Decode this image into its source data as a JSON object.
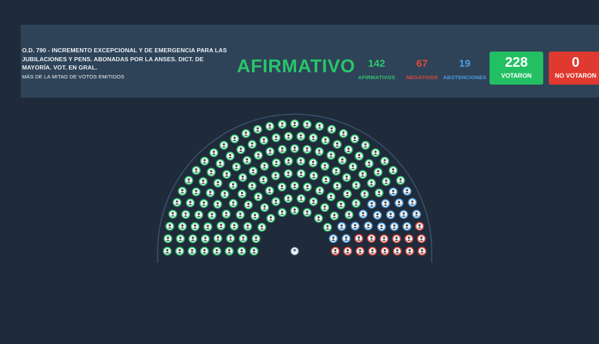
{
  "header": {
    "motion_title": "O.D. 790 - INCREMENTO EXCEPCIONAL Y DE EMERGENCIA PARA LAS JUBILACIONES Y PENS. ABONADAS POR LA ANSES. DICT. DE MAYORÍA. VOT. EN GRAL.",
    "majority_rule": "MÁS DE LA MITAD DE VOTOS EMITIDOS",
    "result": "AFIRMATIVO"
  },
  "stats": {
    "afirmativos": {
      "value": "142",
      "label": "AFIRMATIVOS"
    },
    "negativos": {
      "value": "67",
      "label": "NEGATIVOS"
    },
    "abstenciones": {
      "value": "19",
      "label": "ABSTENCIONES"
    }
  },
  "totals": {
    "votaron": {
      "value": "228",
      "label": "VOTARON"
    },
    "no_votaron": {
      "value": "0",
      "label": "NO VOTARON"
    }
  },
  "colors": {
    "afirmativo": "#2ec76e",
    "negativo": "#e2473b",
    "abstencion": "#4a9ee3",
    "ausente": "#8c8c8c",
    "background": "#1f2b3a",
    "header_bar": "#2f4358"
  }
}
